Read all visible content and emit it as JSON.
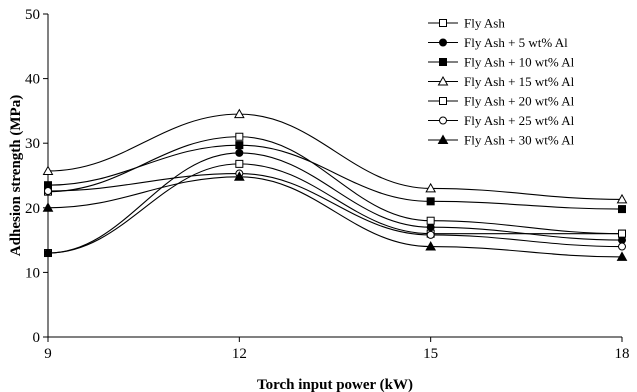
{
  "chart_data": {
    "type": "line",
    "title": "",
    "xlabel": "Torch input power (kW)",
    "ylabel": "Adhesion strength (MPa)",
    "x": [
      9,
      12,
      15,
      18
    ],
    "x_ticks": [
      9,
      12,
      15,
      18
    ],
    "xlim": [
      9,
      18
    ],
    "ylim": [
      0,
      50
    ],
    "y_ticks": [
      0,
      10,
      20,
      30,
      40,
      50
    ],
    "grid": false,
    "smooth": true,
    "legend_position": "top-right",
    "series": [
      {
        "name": "Fly Ash",
        "marker": "open-square",
        "values": [
          13,
          26.8,
          16,
          16
        ]
      },
      {
        "name": "Fly Ash + 5 wt% Al",
        "marker": "filled-circle",
        "values": [
          13,
          28.5,
          17,
          15
        ]
      },
      {
        "name": "Fly Ash + 10 wt% Al",
        "marker": "filled-square",
        "values": [
          23.5,
          29.7,
          21,
          19.8
        ]
      },
      {
        "name": "Fly Ash + 15 wt% Al",
        "marker": "open-triangle",
        "values": [
          25.7,
          34.5,
          23,
          21.3
        ]
      },
      {
        "name": "Fly Ash + 20 wt% Al",
        "marker": "open-square",
        "values": [
          22.5,
          31,
          18,
          16
        ]
      },
      {
        "name": "Fly Ash + 25 wt% Al",
        "marker": "open-circle",
        "values": [
          22.6,
          25.3,
          15.8,
          14
        ]
      },
      {
        "name": "Fly Ash + 30 wt% Al",
        "marker": "filled-triangle",
        "values": [
          20,
          24.8,
          14,
          12.4
        ]
      }
    ]
  }
}
